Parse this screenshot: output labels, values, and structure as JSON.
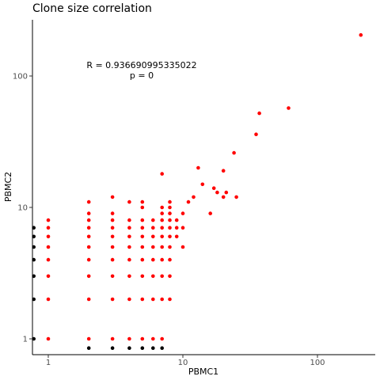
{
  "chart_data": {
    "type": "scatter",
    "title": "Clone size correlation",
    "xlabel": "PBMC1",
    "ylabel": "PBMC2",
    "x_scale": "log10",
    "y_scale": "log10",
    "xlim": [
      0.78,
      280
    ],
    "ylim": [
      0.85,
      280
    ],
    "x_ticks": [
      1,
      10,
      100
    ],
    "y_ticks": [
      1,
      10,
      100
    ],
    "x_tick_labels": [
      "1",
      "10",
      "100"
    ],
    "y_tick_labels": [
      "1",
      "10",
      "100"
    ],
    "grid": false,
    "annotations": {
      "r_text": "R = 0.936690995335022",
      "p_text": "p = 0"
    },
    "colors": {
      "shared": "#ff0000",
      "exclusive": "#000000"
    },
    "series": [
      {
        "color": "#000000",
        "points": [
          [
            0.78,
            7
          ],
          [
            0.78,
            6
          ],
          [
            0.78,
            5
          ],
          [
            0.78,
            4
          ],
          [
            0.78,
            3
          ],
          [
            0.78,
            2
          ],
          [
            0.78,
            1
          ],
          [
            2,
            0.85
          ],
          [
            3,
            0.85
          ],
          [
            4,
            0.85
          ],
          [
            5,
            0.85
          ],
          [
            6,
            0.85
          ],
          [
            7,
            0.85
          ]
        ]
      },
      {
        "color": "#ff0000",
        "points": [
          [
            1,
            8
          ],
          [
            1,
            7
          ],
          [
            1,
            6
          ],
          [
            1,
            5
          ],
          [
            1,
            4
          ],
          [
            1,
            3
          ],
          [
            1,
            2
          ],
          [
            1,
            1
          ],
          [
            2,
            11
          ],
          [
            2,
            9
          ],
          [
            2,
            8
          ],
          [
            2,
            7
          ],
          [
            2,
            6
          ],
          [
            2,
            5
          ],
          [
            2,
            4
          ],
          [
            2,
            3
          ],
          [
            2,
            2
          ],
          [
            2,
            1
          ],
          [
            3,
            12
          ],
          [
            3,
            9
          ],
          [
            3,
            8
          ],
          [
            3,
            7
          ],
          [
            3,
            6
          ],
          [
            3,
            5
          ],
          [
            3,
            4
          ],
          [
            3,
            3
          ],
          [
            3,
            2
          ],
          [
            3,
            1
          ],
          [
            4,
            11
          ],
          [
            4,
            8
          ],
          [
            4,
            7
          ],
          [
            4,
            6
          ],
          [
            4,
            5
          ],
          [
            4,
            4
          ],
          [
            4,
            3
          ],
          [
            4,
            2
          ],
          [
            4,
            1
          ],
          [
            5,
            11
          ],
          [
            5,
            10
          ],
          [
            5,
            8
          ],
          [
            5,
            7
          ],
          [
            5,
            6
          ],
          [
            5,
            5
          ],
          [
            5,
            4
          ],
          [
            5,
            3
          ],
          [
            5,
            2
          ],
          [
            5,
            1
          ],
          [
            6,
            8
          ],
          [
            6,
            7
          ],
          [
            6,
            6
          ],
          [
            6,
            5
          ],
          [
            6,
            4
          ],
          [
            6,
            3
          ],
          [
            6,
            2
          ],
          [
            6,
            1
          ],
          [
            7,
            18
          ],
          [
            7,
            10
          ],
          [
            7,
            9
          ],
          [
            7,
            8
          ],
          [
            7,
            7
          ],
          [
            7,
            6
          ],
          [
            7,
            5
          ],
          [
            7,
            4
          ],
          [
            7,
            3
          ],
          [
            7,
            2
          ],
          [
            7,
            1
          ],
          [
            8,
            11
          ],
          [
            8,
            10
          ],
          [
            8,
            9
          ],
          [
            8,
            8
          ],
          [
            8,
            7
          ],
          [
            8,
            6
          ],
          [
            8,
            5
          ],
          [
            8,
            4
          ],
          [
            8,
            3
          ],
          [
            8,
            2
          ],
          [
            9,
            8
          ],
          [
            9,
            7
          ],
          [
            9,
            6
          ],
          [
            10,
            9
          ],
          [
            10,
            7
          ],
          [
            10,
            5
          ],
          [
            11,
            11
          ],
          [
            12,
            12
          ],
          [
            13,
            20
          ],
          [
            14,
            15
          ],
          [
            16,
            9
          ],
          [
            17,
            14
          ],
          [
            18,
            13
          ],
          [
            20,
            19
          ],
          [
            20,
            12
          ],
          [
            21,
            13
          ],
          [
            24,
            26
          ],
          [
            25,
            12
          ],
          [
            35,
            36
          ],
          [
            37,
            52
          ],
          [
            61,
            57
          ],
          [
            210,
            205
          ]
        ]
      }
    ]
  }
}
